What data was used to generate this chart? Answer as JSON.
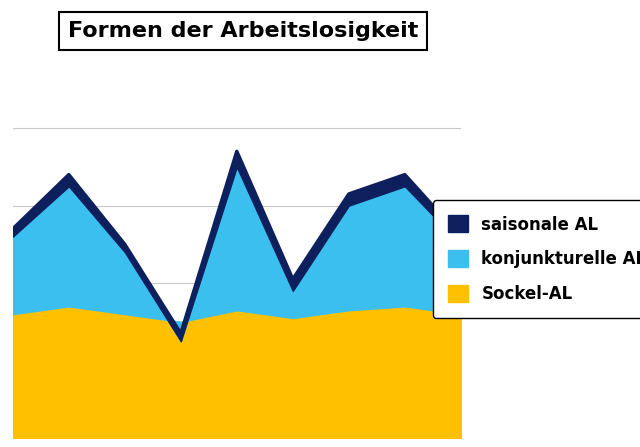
{
  "title": "Formen der Arbeitslosigkeit",
  "x": [
    0,
    1,
    2,
    3,
    4,
    5,
    6,
    7,
    8
  ],
  "sockel": [
    32,
    34,
    32,
    30,
    33,
    31,
    33,
    34,
    32
  ],
  "konjunktur_total": [
    52,
    65,
    48,
    25,
    70,
    38,
    60,
    65,
    50
  ],
  "saisonal_total": [
    54,
    68,
    50,
    27,
    74,
    41,
    63,
    68,
    52
  ],
  "color_sockel": "#FFC000",
  "color_konjunktur": "#3BBFEF",
  "color_saisonal": "#0D1F5C",
  "legend_labels": [
    "saisonale AL",
    "konjunkturelle AL",
    "Sockel-AL"
  ],
  "background_color": "#FFFFFF",
  "title_fontsize": 16,
  "legend_fontsize": 12,
  "ylim": [
    0,
    90
  ]
}
